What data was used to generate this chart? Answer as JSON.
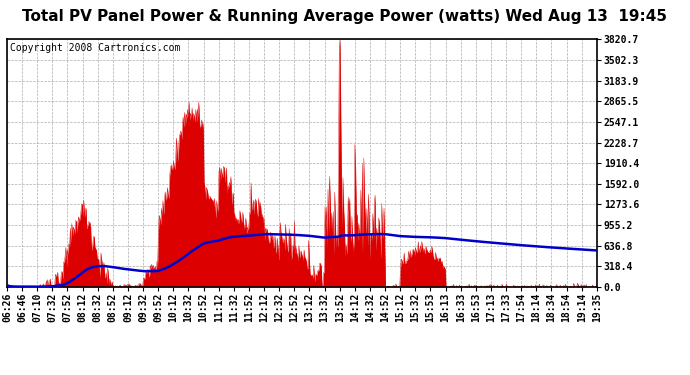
{
  "title": "Total PV Panel Power & Running Average Power (watts) Wed Aug 13  19:45",
  "copyright": "Copyright 2008 Cartronics.com",
  "yticks": [
    0.0,
    318.4,
    636.8,
    955.2,
    1273.6,
    1592.0,
    1910.4,
    2228.7,
    2547.1,
    2865.5,
    3183.9,
    3502.3,
    3820.7
  ],
  "ymax": 3820.7,
  "ymin": 0.0,
  "background_color": "#ffffff",
  "plot_bg_color": "#ffffff",
  "grid_color": "#999999",
  "fill_color": "#dd0000",
  "line_color": "#0000cc",
  "xtick_labels": [
    "06:26",
    "06:46",
    "07:10",
    "07:32",
    "07:52",
    "08:12",
    "08:32",
    "08:52",
    "09:12",
    "09:32",
    "09:52",
    "10:12",
    "10:32",
    "10:52",
    "11:12",
    "11:32",
    "11:52",
    "12:12",
    "12:32",
    "12:52",
    "13:12",
    "13:32",
    "13:52",
    "14:12",
    "14:32",
    "14:52",
    "15:12",
    "15:32",
    "15:53",
    "16:13",
    "16:33",
    "16:53",
    "17:13",
    "17:33",
    "17:54",
    "18:14",
    "18:34",
    "18:54",
    "19:14",
    "19:35"
  ],
  "title_fontsize": 11,
  "copyright_fontsize": 7,
  "tick_fontsize": 7
}
